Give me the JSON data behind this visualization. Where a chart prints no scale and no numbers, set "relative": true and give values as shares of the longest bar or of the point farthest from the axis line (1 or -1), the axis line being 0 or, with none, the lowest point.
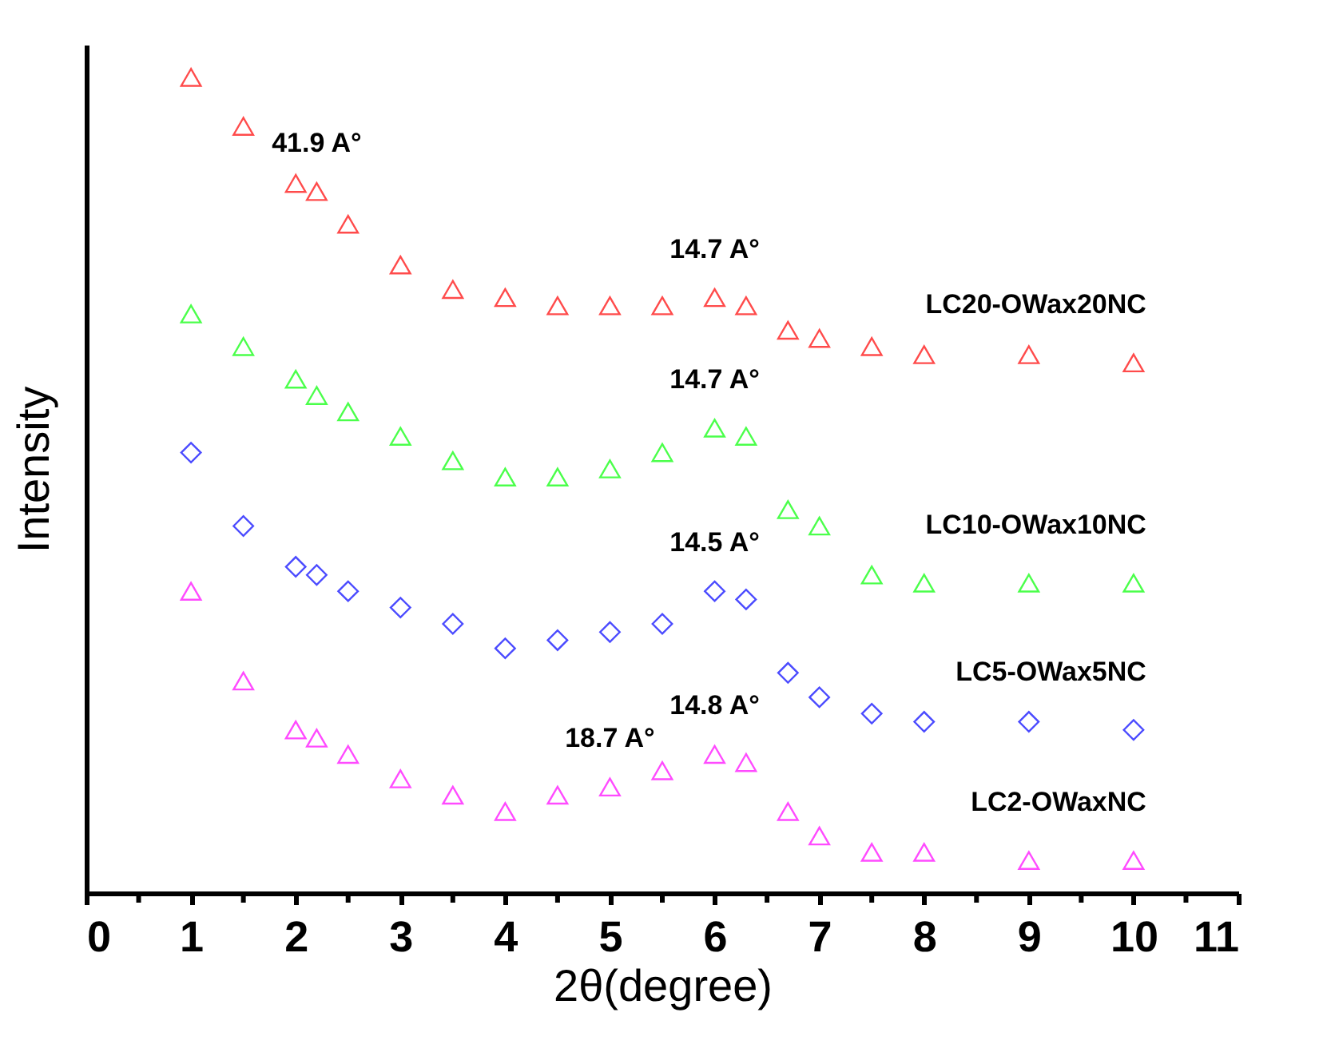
{
  "chart_data": {
    "type": "scatter",
    "relative": true,
    "xlabel": "2θ(degree)",
    "ylabel": "Intensity",
    "xlim": [
      0,
      11
    ],
    "xticks": [
      0,
      {
        "value": 0.5,
        "label": null
      },
      1,
      {
        "value": 1.5,
        "label": null
      },
      2,
      {
        "value": 2.5,
        "label": null
      },
      3,
      {
        "value": 3.5,
        "label": null
      },
      4,
      {
        "value": 4.5,
        "label": null
      },
      5,
      {
        "value": 5.5,
        "label": null
      },
      6,
      {
        "value": 6.5,
        "label": null
      },
      7,
      {
        "value": 7.5,
        "label": null
      },
      8,
      {
        "value": 8.5,
        "label": null
      },
      9,
      {
        "value": 9.5,
        "label": null
      },
      10,
      {
        "value": 10.5,
        "label": null
      },
      11
    ],
    "grid": false,
    "x": [
      1,
      1.5,
      2,
      2.2,
      2.5,
      3,
      3.5,
      4,
      4.5,
      5,
      5.5,
      6,
      6.3,
      6.7,
      7,
      7.5,
      8,
      9,
      10
    ],
    "series": [
      {
        "name": "LC20-OWax20NC",
        "color": "#ff0000",
        "marker": "triangle",
        "values": [
          1.0,
          0.94,
          0.87,
          0.86,
          0.82,
          0.77,
          0.74,
          0.73,
          0.72,
          0.72,
          0.72,
          0.73,
          0.72,
          0.69,
          0.68,
          0.67,
          0.66,
          0.66,
          0.65
        ]
      },
      {
        "name": "LC10-OWax10NC",
        "color": "#00ff00",
        "marker": "triangle",
        "values": [
          0.71,
          0.67,
          0.63,
          0.61,
          0.59,
          0.56,
          0.53,
          0.51,
          0.51,
          0.52,
          0.54,
          0.57,
          0.56,
          0.47,
          0.45,
          0.39,
          0.38,
          0.38,
          0.38
        ]
      },
      {
        "name": "LC5-OWax5NC",
        "color": "#0000ff",
        "marker": "diamond",
        "values": [
          0.54,
          0.45,
          0.4,
          0.39,
          0.37,
          0.35,
          0.33,
          0.3,
          0.31,
          0.32,
          0.33,
          0.37,
          0.36,
          0.27,
          0.24,
          0.22,
          0.21,
          0.21,
          0.2
        ]
      },
      {
        "name": "LC2-OWaxNC",
        "color": "#ff00ff",
        "marker": "triangle",
        "values": [
          0.37,
          0.26,
          0.2,
          0.19,
          0.17,
          0.14,
          0.12,
          0.1,
          0.12,
          0.13,
          0.15,
          0.17,
          0.16,
          0.1,
          0.07,
          0.05,
          0.05,
          0.04,
          0.04
        ]
      }
    ],
    "annotations": [
      {
        "text": "41.9 A°",
        "x": 2.2,
        "y": 0.86
      },
      {
        "text": "14.7 A°",
        "x": 6,
        "y": 0.73
      },
      {
        "text": "14.7 A°",
        "x": 6,
        "y": 0.57
      },
      {
        "text": "14.5 A°",
        "x": 6,
        "y": 0.37
      },
      {
        "text": "18.7 A°",
        "x": 5,
        "y": 0.13
      },
      {
        "text": "14.8 A°",
        "x": 6,
        "y": 0.17
      }
    ]
  }
}
